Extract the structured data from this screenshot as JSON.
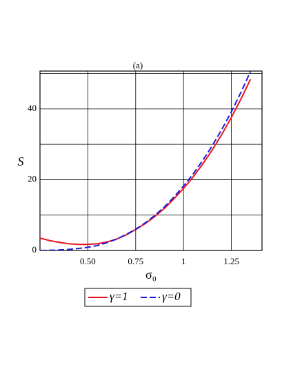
{
  "chart_data": {
    "type": "line",
    "title": "(a)",
    "x_label": "σ₀",
    "y_label": "S",
    "x": [
      0.25,
      0.3,
      0.35,
      0.4,
      0.45,
      0.5,
      0.55,
      0.6,
      0.65,
      0.7,
      0.75,
      0.8,
      0.85,
      0.9,
      0.95,
      1.0,
      1.05,
      1.1,
      1.15,
      1.2,
      1.25,
      1.3,
      1.35
    ],
    "series": [
      {
        "name": "γ=1",
        "color": "#e8141c",
        "dash": false,
        "values": [
          3.5,
          2.8,
          2.3,
          1.9,
          1.7,
          1.7,
          1.9,
          2.4,
          3.2,
          4.4,
          5.9,
          7.6,
          9.6,
          11.9,
          14.6,
          17.5,
          20.8,
          24.4,
          28.4,
          32.8,
          37.6,
          42.8,
          48.4
        ]
      },
      {
        "name": "γ=0",
        "color": "#1a1adc",
        "dash": true,
        "values": [
          0,
          0.05,
          0.15,
          0.3,
          0.55,
          0.9,
          1.4,
          2.2,
          3.2,
          4.5,
          6.0,
          7.8,
          9.9,
          12.3,
          15.1,
          18.2,
          21.6,
          25.4,
          29.6,
          34.2,
          39.2,
          44.7,
          50.6
        ]
      }
    ],
    "xlim": [
      0.25,
      1.41
    ],
    "ylim": [
      0,
      50.7
    ],
    "xticks": [
      {
        "value": 0.5,
        "label": "0.50"
      },
      {
        "value": 0.75,
        "label": "0.75"
      },
      1,
      1.25
    ],
    "yticks": [
      0,
      20,
      40
    ],
    "ygrid": [
      10,
      20,
      30,
      40,
      50
    ],
    "grid": true,
    "legend": "bottom"
  }
}
